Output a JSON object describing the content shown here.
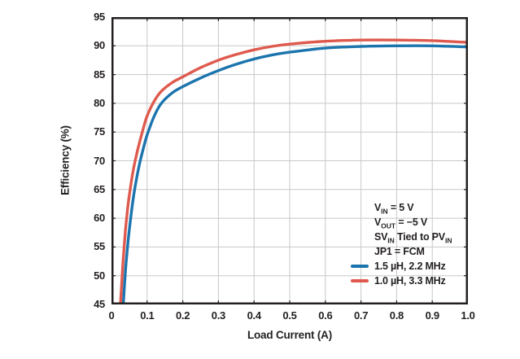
{
  "figure": {
    "y_axis": {
      "title": "Efficiency (%)"
    },
    "x_axis": {
      "title": "Load Current (A)"
    },
    "conditions": [
      {
        "parts": [
          {
            "t": "V"
          },
          {
            "t": "IN",
            "sub": true
          },
          {
            "t": " = 5 V"
          }
        ]
      },
      {
        "parts": [
          {
            "t": "V"
          },
          {
            "t": "OUT",
            "sub": true
          },
          {
            "t": " = −5 V"
          }
        ]
      },
      {
        "parts": [
          {
            "t": "SV"
          },
          {
            "t": "IN",
            "sub": true
          },
          {
            "t": " Tied to PV"
          },
          {
            "t": "IN",
            "sub": true
          }
        ]
      },
      {
        "parts": [
          {
            "t": "JP1 = FCM"
          }
        ]
      }
    ],
    "colors": {
      "text": "#231f20",
      "grid": "#c7c8ca",
      "frame": "#231f20",
      "blue_series": "#1b74ad",
      "red_series": "#df5a4e"
    }
  },
  "chart_data": {
    "type": "line",
    "title": "",
    "xlabel": "Load Current (A)",
    "ylabel": "Efficiency (%)",
    "xlim": [
      0,
      1.0
    ],
    "ylim": [
      45,
      95
    ],
    "grid": true,
    "legend_position": "inside lower right",
    "x_tick_values": [
      0,
      0.1,
      0.2,
      0.3,
      0.4,
      0.5,
      0.6,
      0.7,
      0.8,
      0.9,
      1.0
    ],
    "x_tick_labels": [
      "0",
      "0.1",
      "0.2",
      "0.3",
      "0.4",
      "0.5",
      "0.6",
      "0.7",
      "0.8",
      "0.9",
      "1.0"
    ],
    "y_tick_values": [
      45,
      50,
      55,
      60,
      65,
      70,
      75,
      80,
      85,
      90,
      95
    ],
    "y_tick_labels": [
      "45",
      "50",
      "55",
      "60",
      "65",
      "70",
      "75",
      "80",
      "85",
      "90",
      "95"
    ],
    "series": [
      {
        "name": "1.5 µH, 2.2 MHz",
        "color": "#1b74ad",
        "points": [
          [
            0.033,
            45
          ],
          [
            0.036,
            48
          ],
          [
            0.04,
            51.5
          ],
          [
            0.045,
            55
          ],
          [
            0.05,
            58
          ],
          [
            0.06,
            63
          ],
          [
            0.07,
            66.8
          ],
          [
            0.08,
            69.8
          ],
          [
            0.09,
            72.3
          ],
          [
            0.1,
            74.5
          ],
          [
            0.12,
            77.8
          ],
          [
            0.14,
            80.0
          ],
          [
            0.17,
            81.8
          ],
          [
            0.2,
            82.9
          ],
          [
            0.25,
            84.4
          ],
          [
            0.3,
            85.7
          ],
          [
            0.35,
            86.8
          ],
          [
            0.4,
            87.7
          ],
          [
            0.45,
            88.4
          ],
          [
            0.5,
            88.9
          ],
          [
            0.6,
            89.6
          ],
          [
            0.7,
            89.9
          ],
          [
            0.8,
            90.0
          ],
          [
            0.9,
            90.0
          ],
          [
            1.0,
            89.8
          ]
        ]
      },
      {
        "name": "1.0 µH, 3.3 MHz",
        "color": "#df5a4e",
        "points": [
          [
            0.025,
            45
          ],
          [
            0.028,
            48
          ],
          [
            0.032,
            52
          ],
          [
            0.036,
            55.5
          ],
          [
            0.04,
            58.5
          ],
          [
            0.045,
            61.5
          ],
          [
            0.05,
            64
          ],
          [
            0.06,
            68
          ],
          [
            0.07,
            71
          ],
          [
            0.08,
            73.5
          ],
          [
            0.09,
            75.8
          ],
          [
            0.1,
            77.8
          ],
          [
            0.12,
            80.4
          ],
          [
            0.14,
            82.1
          ],
          [
            0.17,
            83.6
          ],
          [
            0.2,
            84.6
          ],
          [
            0.25,
            86.2
          ],
          [
            0.3,
            87.5
          ],
          [
            0.35,
            88.5
          ],
          [
            0.4,
            89.3
          ],
          [
            0.45,
            89.9
          ],
          [
            0.5,
            90.3
          ],
          [
            0.6,
            90.8
          ],
          [
            0.7,
            91.0
          ],
          [
            0.8,
            91.0
          ],
          [
            0.9,
            90.9
          ],
          [
            1.0,
            90.6
          ]
        ]
      }
    ]
  }
}
